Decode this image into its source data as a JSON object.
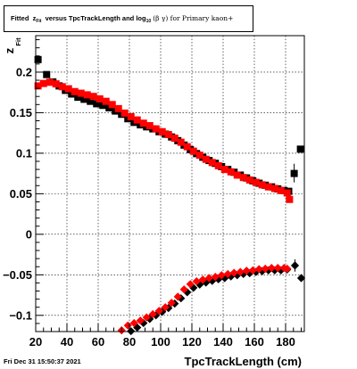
{
  "chart_data": {
    "type": "scatter",
    "title_parts": {
      "t1": "Fitted",
      "t2": "z",
      "t3": "Fit",
      "t4": "versus TpcTrackLength and log",
      "t5": "10",
      "t6": "(β γ) for Primary kaon+"
    },
    "ylabel_main": "z",
    "ylabel_sub": "Fit",
    "xlabel": "TpcTrackLength (cm)",
    "xlim": [
      20,
      192
    ],
    "ylim": [
      -0.12,
      0.245
    ],
    "x_ticks": [
      "20",
      "40",
      "60",
      "80",
      "100",
      "120",
      "140",
      "160",
      "180"
    ],
    "y_ticks": [
      "−0.1",
      "−0.05",
      "0",
      "0.05",
      "0.1",
      "0.15",
      "0.2"
    ],
    "grid": true,
    "colors": {
      "black": "#000000",
      "red": "#ff0000"
    },
    "series": [
      {
        "marker": "square",
        "color": "#000000",
        "points": [
          [
            21.5,
            0.2155
          ],
          [
            27,
            0.197
          ],
          [
            31,
            0.188
          ],
          [
            35,
            0.183
          ],
          [
            39,
            0.1775
          ],
          [
            43,
            0.173
          ],
          [
            47,
            0.169
          ],
          [
            51,
            0.1665
          ],
          [
            55,
            0.164
          ],
          [
            59,
            0.161
          ],
          [
            63,
            0.159
          ],
          [
            67,
            0.156
          ],
          [
            71,
            0.152
          ],
          [
            75,
            0.148
          ],
          [
            79,
            0.1425
          ],
          [
            83,
            0.138
          ],
          [
            87,
            0.135
          ],
          [
            91,
            0.1325
          ],
          [
            95,
            0.13
          ],
          [
            99,
            0.1265
          ],
          [
            103,
            0.1235
          ],
          [
            107,
            0.12
          ],
          [
            111,
            0.1155
          ],
          [
            115,
            0.11
          ],
          [
            119,
            0.1045
          ],
          [
            123,
            0.0995
          ],
          [
            127,
            0.095
          ],
          [
            131,
            0.091
          ],
          [
            135,
            0.0875
          ],
          [
            139,
            0.0835
          ],
          [
            143,
            0.08
          ],
          [
            147,
            0.0765
          ],
          [
            151,
            0.073
          ],
          [
            155,
            0.0695
          ],
          [
            159,
            0.066
          ],
          [
            163,
            0.063
          ],
          [
            167,
            0.0605
          ],
          [
            171,
            0.0585
          ],
          [
            175,
            0.056
          ],
          [
            179,
            0.054
          ],
          [
            182,
            0.053
          ],
          [
            185.5,
            0.075
          ],
          [
            189.5,
            0.105
          ]
        ]
      },
      {
        "marker": "square",
        "color": "#ff0000",
        "points": [
          [
            21.5,
            0.183
          ],
          [
            25,
            0.186
          ],
          [
            29,
            0.1875
          ],
          [
            33,
            0.1855
          ],
          [
            37,
            0.182
          ],
          [
            41,
            0.1795
          ],
          [
            45,
            0.176
          ],
          [
            49,
            0.174
          ],
          [
            53,
            0.172
          ],
          [
            57,
            0.17
          ],
          [
            61,
            0.167
          ],
          [
            65,
            0.164
          ],
          [
            69,
            0.16
          ],
          [
            73,
            0.155
          ],
          [
            77,
            0.1495
          ],
          [
            81,
            0.145
          ],
          [
            85,
            0.141
          ],
          [
            89,
            0.137
          ],
          [
            93,
            0.134
          ],
          [
            97,
            0.13
          ],
          [
            101,
            0.1265
          ],
          [
            105,
            0.123
          ],
          [
            109,
            0.1185
          ],
          [
            113,
            0.1135
          ],
          [
            117,
            0.108
          ],
          [
            121,
            0.1025
          ],
          [
            125,
            0.0975
          ],
          [
            129,
            0.0925
          ],
          [
            133,
            0.0885
          ],
          [
            137,
            0.0845
          ],
          [
            141,
            0.08
          ],
          [
            145,
            0.077
          ],
          [
            149,
            0.073
          ],
          [
            153,
            0.07
          ],
          [
            157,
            0.067
          ],
          [
            161,
            0.064
          ],
          [
            165,
            0.061
          ],
          [
            169,
            0.0585
          ],
          [
            173,
            0.0565
          ],
          [
            177,
            0.054
          ],
          [
            181,
            0.051
          ],
          [
            182.5,
            0.043
          ]
        ]
      },
      {
        "marker": "diamond",
        "color": "#000000",
        "points": [
          [
            81,
            -0.1195
          ],
          [
            85,
            -0.115
          ],
          [
            89,
            -0.1095
          ],
          [
            93,
            -0.1045
          ],
          [
            97,
            -0.1
          ],
          [
            101,
            -0.0955
          ],
          [
            105,
            -0.091
          ],
          [
            109,
            -0.0855
          ],
          [
            113,
            -0.079
          ],
          [
            117,
            -0.0715
          ],
          [
            121,
            -0.066
          ],
          [
            125,
            -0.062
          ],
          [
            129,
            -0.0595
          ],
          [
            133,
            -0.0575
          ],
          [
            137,
            -0.0555
          ],
          [
            141,
            -0.054
          ],
          [
            145,
            -0.052
          ],
          [
            149,
            -0.0505
          ],
          [
            153,
            -0.049
          ],
          [
            157,
            -0.048
          ],
          [
            161,
            -0.0465
          ],
          [
            165,
            -0.0455
          ],
          [
            169,
            -0.0445
          ],
          [
            173,
            -0.0445
          ],
          [
            177,
            -0.0445
          ],
          [
            181,
            -0.0435
          ],
          [
            186,
            -0.0385
          ],
          [
            190,
            -0.054
          ]
        ]
      },
      {
        "marker": "diamond",
        "color": "#ff0000",
        "points": [
          [
            75,
            -0.1185
          ],
          [
            79,
            -0.1125
          ],
          [
            83,
            -0.1095
          ],
          [
            87,
            -0.1065
          ],
          [
            91,
            -0.1025
          ],
          [
            95,
            -0.0985
          ],
          [
            99,
            -0.0945
          ],
          [
            103,
            -0.09
          ],
          [
            107,
            -0.0845
          ],
          [
            111,
            -0.077
          ],
          [
            115,
            -0.068
          ],
          [
            119,
            -0.0615
          ],
          [
            123,
            -0.058
          ],
          [
            127,
            -0.056
          ],
          [
            131,
            -0.054
          ],
          [
            135,
            -0.0525
          ],
          [
            139,
            -0.0505
          ],
          [
            143,
            -0.049
          ],
          [
            147,
            -0.0475
          ],
          [
            151,
            -0.0465
          ],
          [
            155,
            -0.045
          ],
          [
            159,
            -0.0445
          ],
          [
            163,
            -0.043
          ],
          [
            167,
            -0.0425
          ],
          [
            171,
            -0.0415
          ],
          [
            175,
            -0.0415
          ],
          [
            179,
            -0.0415
          ],
          [
            181,
            -0.0425
          ]
        ]
      }
    ],
    "error_bars": [
      {
        "x": 185.5,
        "y_low": 0.064,
        "y_high": 0.087
      },
      {
        "x": 186,
        "y_low": -0.046,
        "y_high": -0.031
      }
    ]
  },
  "footer": {
    "date": "Fri Dec 31 15:50:37 2021"
  }
}
